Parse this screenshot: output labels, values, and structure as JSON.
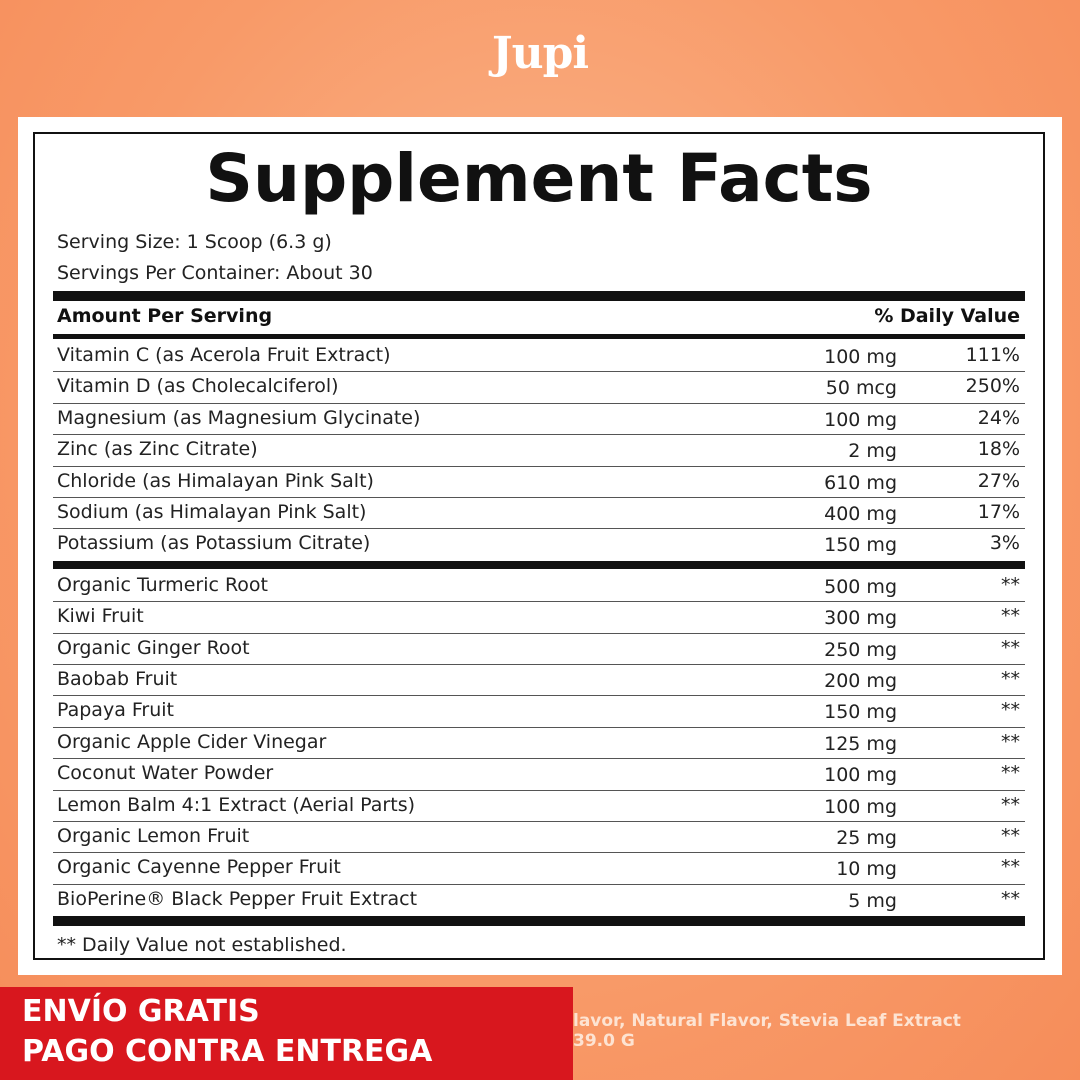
{
  "header": {
    "brand": "Jupi"
  },
  "panel": {
    "title": "Supplement Facts",
    "serving_size": "Serving Size: 1 Scoop (6.3 g)",
    "servings_per_container": "Servings Per Container: About 30",
    "columns": {
      "amount": "Amount Per Serving",
      "daily_value": "% Daily Value"
    },
    "sections": [
      {
        "rows": [
          [
            "Vitamin C (as Acerola Fruit Extract)",
            "100 mg",
            "111%"
          ],
          [
            "Vitamin D (as Cholecalciferol)",
            "50 mcg",
            "250%"
          ],
          [
            "Magnesium (as Magnesium Glycinate)",
            "100 mg",
            "24%"
          ],
          [
            "Zinc (as Zinc Citrate)",
            "2 mg",
            "18%"
          ],
          [
            "Chloride (as Himalayan Pink Salt)",
            "610 mg",
            "27%"
          ],
          [
            "Sodium (as Himalayan Pink Salt)",
            "400 mg",
            "17%"
          ],
          [
            "Potassium (as Potassium Citrate)",
            "150 mg",
            "3%"
          ]
        ]
      },
      {
        "rows": [
          [
            "Organic Turmeric Root",
            "500 mg",
            "**"
          ],
          [
            "Kiwi Fruit",
            "300 mg",
            "**"
          ],
          [
            "Organic Ginger Root",
            "250 mg",
            "**"
          ],
          [
            "Baobab Fruit",
            "200 mg",
            "**"
          ],
          [
            "Papaya Fruit",
            "150 mg",
            "**"
          ],
          [
            "Organic Apple Cider Vinegar",
            "125 mg",
            "**"
          ],
          [
            "Coconut Water Powder",
            "100 mg",
            "**"
          ],
          [
            "Lemon Balm 4:1 Extract (Aerial Parts)",
            "100 mg",
            "**"
          ],
          [
            "Organic Lemon Fruit",
            "25 mg",
            "**"
          ],
          [
            "Organic Cayenne Pepper Fruit",
            "10 mg",
            "**"
          ],
          [
            "BioPerine® Black Pepper Fruit Extract",
            "5 mg",
            "**"
          ]
        ]
      }
    ],
    "footnote": "** Daily Value not established."
  },
  "banner": {
    "line1": "ENVÍO GRATIS",
    "line2": "PAGO CONTRA ENTREGA"
  },
  "background_text": {
    "line1": "lavor, Natural Flavor, Stevia Leaf Extract",
    "line2": "39.0 G"
  }
}
